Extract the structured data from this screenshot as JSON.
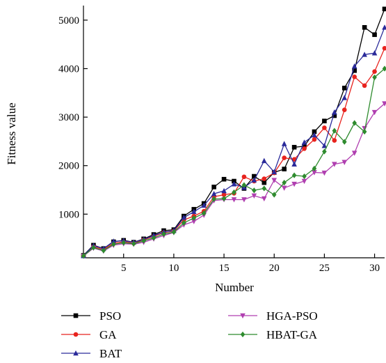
{
  "chart_data": {
    "type": "line",
    "xlabel": "Number",
    "ylabel": "Fitness value",
    "xlim": [
      1,
      31
    ],
    "ylim": [
      100,
      5300
    ],
    "xticks": [
      5,
      10,
      15,
      20,
      25,
      30
    ],
    "yticks": [
      1000,
      2000,
      3000,
      4000,
      5000
    ],
    "grid": false,
    "legend_position": "bottom",
    "x": [
      1,
      2,
      3,
      4,
      5,
      6,
      7,
      8,
      9,
      10,
      11,
      12,
      13,
      14,
      15,
      16,
      17,
      18,
      19,
      20,
      21,
      22,
      23,
      24,
      25,
      26,
      27,
      28,
      29,
      30,
      31
    ],
    "series": [
      {
        "name": "PSO",
        "color": "#000000",
        "marker": "square",
        "values": [
          150,
          360,
          290,
          430,
          460,
          420,
          490,
          580,
          660,
          680,
          960,
          1100,
          1220,
          1560,
          1720,
          1680,
          1530,
          1780,
          1650,
          1860,
          1930,
          2380,
          2400,
          2700,
          2920,
          3030,
          3600,
          3960,
          4850,
          4700,
          5230
        ]
      },
      {
        "name": "GA",
        "color": "#e8231e",
        "marker": "circle",
        "values": [
          140,
          330,
          270,
          400,
          430,
          400,
          470,
          540,
          620,
          650,
          880,
          960,
          1060,
          1360,
          1400,
          1430,
          1770,
          1680,
          1730,
          1850,
          2160,
          2130,
          2350,
          2540,
          2780,
          2520,
          3150,
          3830,
          3650,
          3940,
          4420
        ]
      },
      {
        "name": "BAT",
        "color": "#2a2a9a",
        "marker": "triangle-up",
        "values": [
          140,
          350,
          290,
          440,
          450,
          420,
          480,
          560,
          630,
          660,
          930,
          1050,
          1180,
          1420,
          1480,
          1620,
          1550,
          1700,
          2100,
          1870,
          2450,
          2030,
          2480,
          2630,
          2410,
          3100,
          3400,
          4050,
          4290,
          4320,
          4850
        ]
      },
      {
        "name": "HGA-PSO",
        "color": "#b03fb0",
        "marker": "triangle-down",
        "values": [
          135,
          300,
          240,
          360,
          390,
          380,
          420,
          490,
          560,
          620,
          780,
          850,
          980,
          1280,
          1300,
          1300,
          1300,
          1380,
          1320,
          1700,
          1540,
          1620,
          1680,
          1860,
          1850,
          2030,
          2070,
          2260,
          2770,
          3100,
          3280
        ]
      },
      {
        "name": "HBAT-GA",
        "color": "#2e8b2e",
        "marker": "diamond",
        "values": [
          140,
          310,
          250,
          380,
          410,
          390,
          450,
          510,
          590,
          630,
          820,
          920,
          1020,
          1310,
          1320,
          1450,
          1600,
          1490,
          1530,
          1400,
          1650,
          1800,
          1780,
          1940,
          2290,
          2720,
          2490,
          2880,
          2700,
          3820,
          4000
        ]
      }
    ]
  }
}
